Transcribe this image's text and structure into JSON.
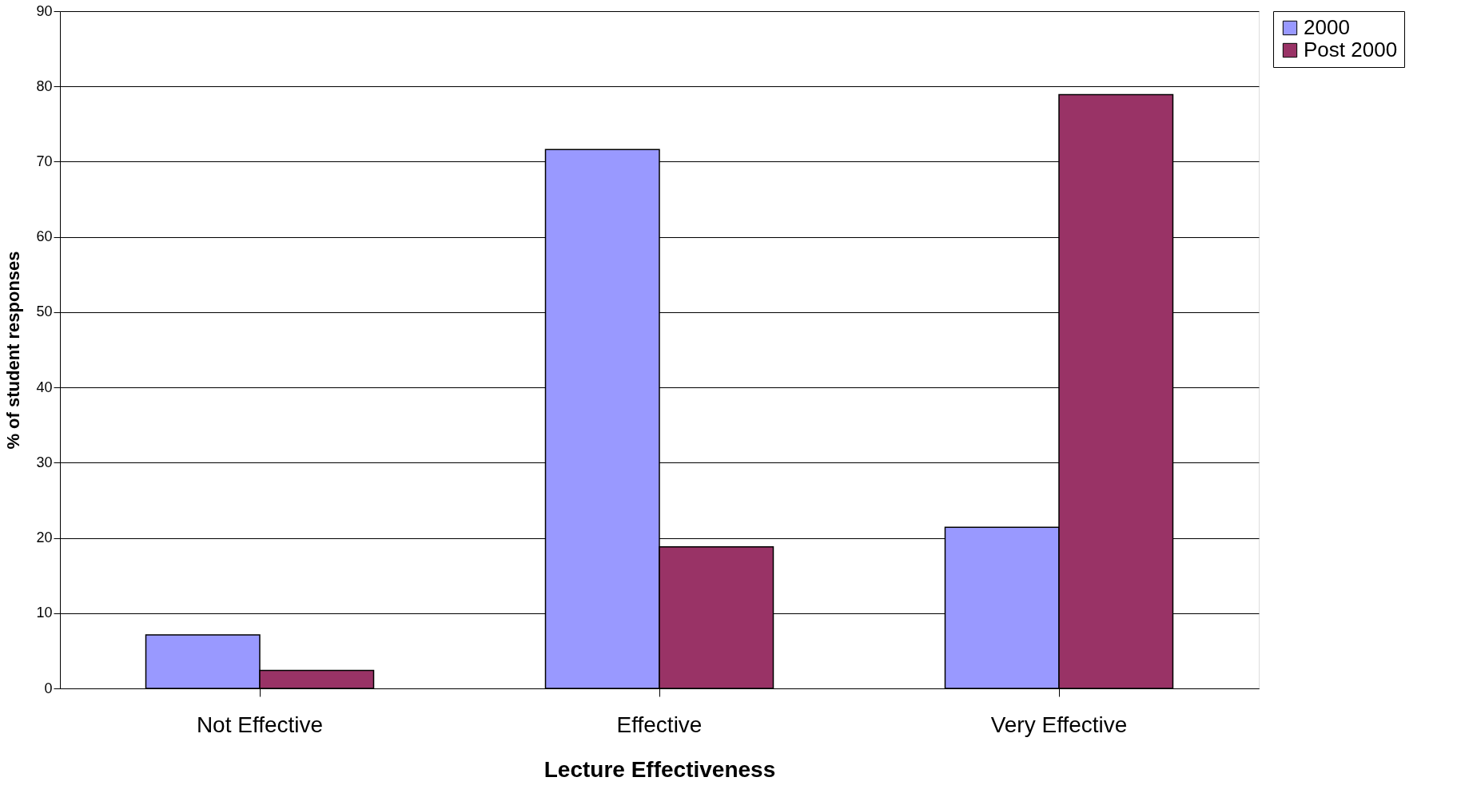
{
  "chart_data": {
    "type": "bar",
    "xlabel": "Lecture Effectiveness",
    "ylabel": "% of student responses",
    "categories": [
      "Not Effective",
      "Effective",
      "Very Effective"
    ],
    "series": [
      {
        "name": "2000",
        "color": "#9999ff",
        "values": [
          7.1,
          71.6,
          21.4
        ]
      },
      {
        "name": "Post 2000",
        "color": "#993366",
        "values": [
          2.4,
          18.8,
          78.9
        ]
      }
    ],
    "ylim": [
      0,
      90
    ],
    "yticks": [
      0,
      10,
      20,
      30,
      40,
      50,
      60,
      70,
      80,
      90
    ],
    "grid": "y",
    "legend": "right"
  }
}
